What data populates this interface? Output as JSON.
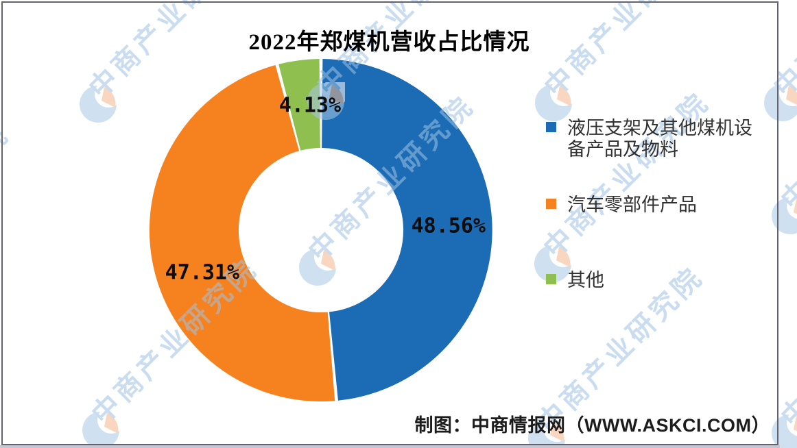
{
  "title": "2022年郑煤机营收占比情况",
  "chart_data": {
    "type": "pie",
    "subtype": "donut",
    "title": "2022年郑煤机营收占比情况",
    "categories": [
      "液压支架及其他煤机设备产品及物料",
      "汽车零部件产品",
      "其他"
    ],
    "values": [
      48.56,
      47.31,
      4.13
    ],
    "unit": "%",
    "data_labels": [
      "48.56%",
      "47.31%",
      "4.13%"
    ],
    "colors": [
      "#1c6cb5",
      "#f6821f",
      "#8fbf4f"
    ],
    "start": "12-oclock",
    "direction": "clockwise",
    "hole_ratio": 0.48,
    "legend_position": "right"
  },
  "legend": {
    "items": [
      {
        "label": "液压支架及其他煤机设备产品及物料",
        "color": "#1c6cb5"
      },
      {
        "label": "汽车零部件产品",
        "color": "#f6821f"
      },
      {
        "label": "其他",
        "color": "#8fbf4f"
      }
    ]
  },
  "attribution": "制图：中商情报网（WWW.ASKCI.COM）",
  "watermark": {
    "text": "中商产业研究院",
    "logo_blue": "#a9c9e6",
    "logo_orange": "#f4b68c"
  }
}
